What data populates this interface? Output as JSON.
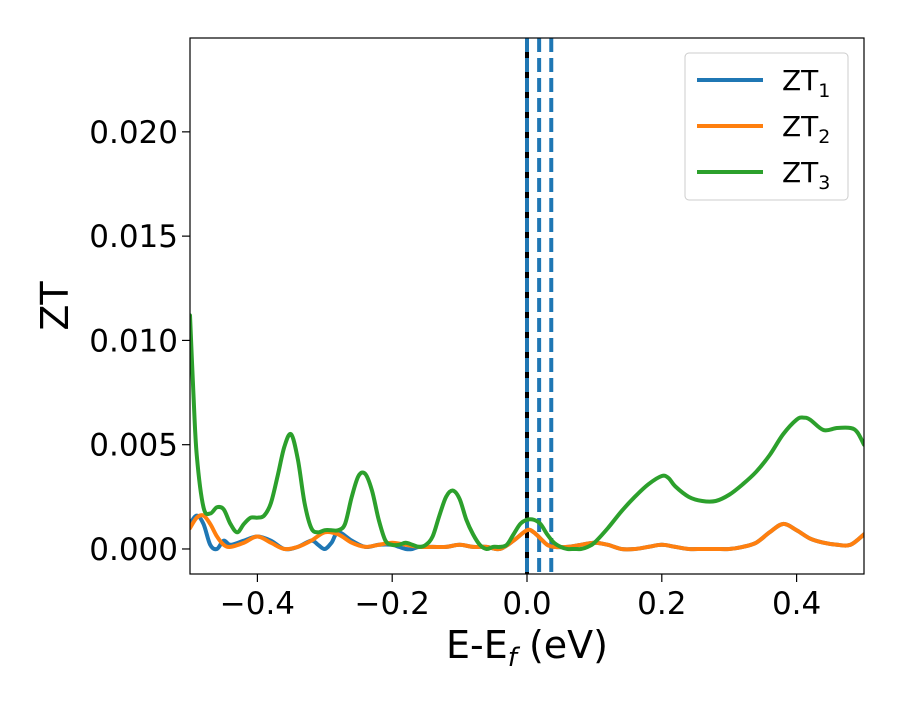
{
  "chart_data": {
    "type": "line",
    "xlabel": "E-E_f (eV)",
    "ylabel": "ZT",
    "xlim": [
      -0.5,
      0.5
    ],
    "ylim": [
      -0.0012,
      0.0245
    ],
    "x_ticks": [
      -0.4,
      -0.2,
      0.0,
      0.2,
      0.4
    ],
    "x_tick_labels": [
      "−0.4",
      "−0.2",
      "0.0",
      "0.2",
      "0.4"
    ],
    "y_ticks": [
      0.0,
      0.005,
      0.01,
      0.015,
      0.02
    ],
    "y_tick_labels": [
      "0.000",
      "0.005",
      "0.010",
      "0.015",
      "0.020"
    ],
    "grid": false,
    "legend_position": "top-right",
    "colors": {
      "zt1": "#1f77b4",
      "zt2": "#ff7f0e",
      "zt3": "#2ca02c",
      "fermi": "#000000"
    },
    "series": [
      {
        "name": "ZT1",
        "label_base": "ZT",
        "label_sub": "1",
        "color": "#1f77b4",
        "x": [
          -0.5,
          -0.49,
          -0.48,
          -0.47,
          -0.46,
          -0.45,
          -0.44,
          -0.42,
          -0.4,
          -0.38,
          -0.36,
          -0.34,
          -0.32,
          -0.31,
          -0.3,
          -0.29,
          -0.28,
          -0.26,
          -0.24,
          -0.22,
          -0.2,
          -0.19,
          -0.18,
          -0.17,
          -0.16,
          -0.14,
          -0.12,
          -0.1,
          -0.08,
          -0.06,
          -0.04,
          -0.02,
          0.0,
          0.01,
          0.02,
          0.03,
          0.04,
          0.06,
          0.08,
          0.1,
          0.12,
          0.14,
          0.16,
          0.18,
          0.2,
          0.22,
          0.24,
          0.26,
          0.28,
          0.3,
          0.32,
          0.34,
          0.36,
          0.38,
          0.4,
          0.42,
          0.44,
          0.46,
          0.48,
          0.5
        ],
        "y": [
          0.0012,
          0.0016,
          0.0012,
          0.0002,
          0.0,
          0.0004,
          0.0002,
          0.0004,
          0.0006,
          0.0004,
          0.0,
          0.0001,
          0.0004,
          0.0002,
          0.0,
          0.0003,
          0.0008,
          0.0004,
          0.0001,
          0.0002,
          0.0002,
          0.0001,
          0.0,
          0.0,
          0.0001,
          0.0001,
          0.0001,
          0.0002,
          0.0001,
          0.0001,
          0.0,
          0.0004,
          0.0009,
          0.0008,
          0.0005,
          0.0002,
          0.0001,
          0.0001,
          0.0002,
          0.0003,
          0.0002,
          0.0,
          0.0,
          0.0001,
          0.0002,
          0.0001,
          0.0,
          0.0,
          0.0,
          0.0,
          0.0001,
          0.0003,
          0.0008,
          0.0012,
          0.0009,
          0.0005,
          0.0003,
          0.0002,
          0.0002,
          0.0007
        ]
      },
      {
        "name": "ZT2",
        "label_base": "ZT",
        "label_sub": "2",
        "color": "#ff7f0e",
        "x": [
          -0.5,
          -0.49,
          -0.48,
          -0.47,
          -0.46,
          -0.45,
          -0.44,
          -0.42,
          -0.4,
          -0.38,
          -0.36,
          -0.34,
          -0.32,
          -0.3,
          -0.28,
          -0.26,
          -0.24,
          -0.22,
          -0.2,
          -0.18,
          -0.16,
          -0.14,
          -0.12,
          -0.1,
          -0.08,
          -0.06,
          -0.04,
          -0.02,
          0.0,
          0.01,
          0.02,
          0.03,
          0.04,
          0.06,
          0.08,
          0.1,
          0.12,
          0.14,
          0.16,
          0.18,
          0.2,
          0.22,
          0.24,
          0.26,
          0.28,
          0.3,
          0.32,
          0.34,
          0.36,
          0.38,
          0.4,
          0.42,
          0.44,
          0.46,
          0.48,
          0.5
        ],
        "y": [
          0.001,
          0.0015,
          0.0016,
          0.0012,
          0.0006,
          0.0002,
          0.0001,
          0.0003,
          0.0006,
          0.0003,
          0.0,
          0.0001,
          0.0004,
          0.0008,
          0.0007,
          0.0003,
          0.0001,
          0.0002,
          0.0003,
          0.0002,
          0.0001,
          0.0001,
          0.0001,
          0.0002,
          0.0001,
          0.0001,
          0.0,
          0.0004,
          0.0009,
          0.0008,
          0.0005,
          0.0002,
          0.0001,
          0.0001,
          0.0002,
          0.0003,
          0.0002,
          0.0,
          0.0,
          0.0001,
          0.0002,
          0.0001,
          0.0,
          0.0,
          0.0,
          0.0,
          0.0001,
          0.0003,
          0.0008,
          0.0012,
          0.0009,
          0.0005,
          0.0003,
          0.0002,
          0.0002,
          0.0007
        ]
      },
      {
        "name": "ZT3",
        "label_base": "ZT",
        "label_sub": "3",
        "color": "#2ca02c",
        "x": [
          -0.5,
          -0.495,
          -0.49,
          -0.48,
          -0.47,
          -0.46,
          -0.45,
          -0.44,
          -0.43,
          -0.42,
          -0.41,
          -0.4,
          -0.39,
          -0.38,
          -0.37,
          -0.36,
          -0.35,
          -0.34,
          -0.33,
          -0.32,
          -0.31,
          -0.3,
          -0.29,
          -0.28,
          -0.27,
          -0.26,
          -0.25,
          -0.24,
          -0.23,
          -0.22,
          -0.21,
          -0.2,
          -0.19,
          -0.18,
          -0.17,
          -0.16,
          -0.15,
          -0.14,
          -0.13,
          -0.12,
          -0.11,
          -0.1,
          -0.09,
          -0.08,
          -0.07,
          -0.06,
          -0.05,
          -0.04,
          -0.03,
          -0.02,
          -0.01,
          0.0,
          0.01,
          0.02,
          0.03,
          0.04,
          0.05,
          0.06,
          0.07,
          0.08,
          0.09,
          0.1,
          0.12,
          0.14,
          0.16,
          0.18,
          0.2,
          0.21,
          0.22,
          0.24,
          0.26,
          0.28,
          0.3,
          0.32,
          0.34,
          0.36,
          0.38,
          0.4,
          0.41,
          0.42,
          0.44,
          0.46,
          0.48,
          0.49,
          0.5
        ],
        "y": [
          0.0112,
          0.0075,
          0.0045,
          0.002,
          0.0017,
          0.002,
          0.0019,
          0.0012,
          0.0008,
          0.0012,
          0.0015,
          0.0015,
          0.0016,
          0.0022,
          0.0035,
          0.0049,
          0.0055,
          0.0043,
          0.0022,
          0.001,
          0.0008,
          0.0009,
          0.0009,
          0.0009,
          0.0012,
          0.0025,
          0.0035,
          0.0036,
          0.0028,
          0.0014,
          0.0004,
          0.0002,
          0.0002,
          0.0003,
          0.0002,
          0.0001,
          0.0002,
          0.0006,
          0.0016,
          0.0025,
          0.0028,
          0.0024,
          0.0014,
          0.0007,
          0.0002,
          0.0,
          0.0001,
          0.0001,
          0.0002,
          0.0007,
          0.0012,
          0.0014,
          0.0014,
          0.0012,
          0.0007,
          0.0003,
          0.0001,
          0.0,
          0.0,
          0.0,
          0.0001,
          0.0003,
          0.001,
          0.0018,
          0.0025,
          0.0031,
          0.0035,
          0.0034,
          0.003,
          0.0025,
          0.0023,
          0.0023,
          0.0026,
          0.0031,
          0.0037,
          0.0045,
          0.0055,
          0.0062,
          0.0063,
          0.0062,
          0.0057,
          0.0058,
          0.0058,
          0.0056,
          0.005
        ]
      }
    ],
    "vertical_lines": [
      {
        "x": 0.0,
        "color": "#000000",
        "style": "solid"
      },
      {
        "x": 0.0,
        "color": "#1f77b4",
        "style": "dashed"
      },
      {
        "x": 0.018,
        "color": "#1f77b4",
        "style": "dashed"
      },
      {
        "x": 0.036,
        "color": "#1f77b4",
        "style": "dashed"
      }
    ]
  }
}
